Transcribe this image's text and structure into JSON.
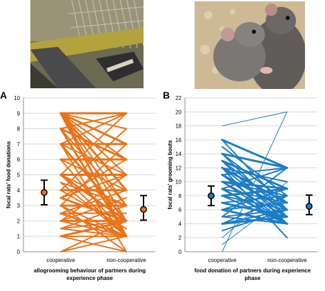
{
  "photos": [
    {
      "subject": "experimental apparatus with rat cage and food tray"
    },
    {
      "subject": "two grey rats grooming"
    }
  ],
  "colors": {
    "orange": "#E8731A",
    "blue": "#1C7DC4",
    "grid": "#D9D9D9",
    "axis": "#8C8C8C"
  },
  "chart_data": [
    {
      "type": "line",
      "panel_label": "A",
      "ylabel": "focal rats' food donations",
      "xlabel_line1": "allogrooming behaviour of partners during",
      "xlabel_line2": "experience phase",
      "categories": [
        "cooperative",
        "non-cooperative"
      ],
      "ylim": [
        0,
        10
      ],
      "yticks": [
        0,
        1,
        2,
        3,
        4,
        5,
        6,
        7,
        8,
        9,
        10
      ],
      "grid": true,
      "color": "#E8731A",
      "pairs": [
        [
          9,
          9,
          3
        ],
        [
          9,
          8,
          2
        ],
        [
          9,
          7,
          3
        ],
        [
          9,
          6,
          2
        ],
        [
          9,
          5,
          2
        ],
        [
          9,
          4,
          3
        ],
        [
          9,
          3,
          2
        ],
        [
          9,
          2,
          2
        ],
        [
          9,
          1,
          3
        ],
        [
          8,
          9,
          2
        ],
        [
          8,
          6,
          3
        ],
        [
          8,
          3,
          2
        ],
        [
          8,
          1,
          3
        ],
        [
          7,
          9,
          2
        ],
        [
          7,
          7,
          3
        ],
        [
          7,
          5,
          2
        ],
        [
          7,
          2,
          3
        ],
        [
          7,
          0,
          2
        ],
        [
          6,
          6,
          3
        ],
        [
          6,
          4,
          2
        ],
        [
          6,
          1,
          2
        ],
        [
          5,
          9,
          2
        ],
        [
          5,
          5,
          3
        ],
        [
          5,
          3,
          2
        ],
        [
          5,
          2,
          3
        ],
        [
          5,
          1,
          2
        ],
        [
          4.5,
          3,
          2
        ],
        [
          4.5,
          1,
          2
        ],
        [
          4,
          8,
          2
        ],
        [
          4,
          4,
          3
        ],
        [
          4,
          1.5,
          2
        ],
        [
          3.5,
          5,
          2
        ],
        [
          3.5,
          2,
          3
        ],
        [
          3.5,
          6,
          2
        ],
        [
          3,
          7,
          2
        ],
        [
          3,
          3,
          3
        ],
        [
          3,
          1,
          2
        ],
        [
          3,
          0,
          2
        ],
        [
          2.5,
          4,
          2
        ],
        [
          2.5,
          2.5,
          2
        ],
        [
          2.5,
          1,
          3
        ],
        [
          2,
          5,
          2
        ],
        [
          2,
          2,
          3
        ],
        [
          2,
          1,
          2
        ],
        [
          2,
          3.5,
          2
        ],
        [
          1.5,
          3,
          2
        ],
        [
          1.5,
          1,
          2
        ],
        [
          1.5,
          2,
          2
        ],
        [
          1,
          2,
          3
        ],
        [
          1,
          1,
          2
        ],
        [
          1,
          0,
          2
        ],
        [
          0,
          2,
          2
        ],
        [
          0,
          1,
          2
        ]
      ],
      "mean_cooperative": {
        "mean": 3.85,
        "low": 3.05,
        "high": 4.65
      },
      "mean_noncooperative": {
        "mean": 2.75,
        "low": 2.05,
        "high": 3.65
      }
    },
    {
      "type": "line",
      "panel_label": "B",
      "ylabel": "focal rats' grooming bouts",
      "xlabel_line1": "food donation of partners during experience",
      "xlabel_line2": "phase",
      "categories": [
        "cooperative",
        "non-cooperative"
      ],
      "ylim": [
        0,
        22
      ],
      "yticks": [
        0,
        2,
        4,
        6,
        8,
        10,
        12,
        14,
        16,
        18,
        20,
        22
      ],
      "grid": true,
      "color": "#1C7DC4",
      "pairs": [
        [
          18,
          20,
          1
        ],
        [
          16,
          12,
          3
        ],
        [
          16,
          6,
          2
        ],
        [
          15,
          8,
          2
        ],
        [
          14,
          12,
          3
        ],
        [
          14,
          5,
          2
        ],
        [
          13,
          9,
          3
        ],
        [
          13,
          4,
          2
        ],
        [
          12,
          10,
          2
        ],
        [
          12,
          7,
          3
        ],
        [
          12,
          2,
          2
        ],
        [
          11,
          12,
          2
        ],
        [
          11,
          6,
          3
        ],
        [
          11,
          4,
          2
        ],
        [
          10,
          9,
          3
        ],
        [
          10,
          5,
          2
        ],
        [
          10,
          8,
          2
        ],
        [
          9,
          12,
          2
        ],
        [
          9,
          4,
          3
        ],
        [
          9,
          7,
          2
        ],
        [
          8,
          9,
          3
        ],
        [
          8,
          6,
          2
        ],
        [
          8,
          4,
          2
        ],
        [
          7,
          8,
          2
        ],
        [
          7,
          5,
          3
        ],
        [
          6,
          9,
          2
        ],
        [
          6,
          7,
          2
        ],
        [
          6,
          4,
          3
        ],
        [
          5,
          12,
          2
        ],
        [
          5,
          6,
          2
        ],
        [
          5,
          4,
          2
        ],
        [
          4,
          8,
          2
        ],
        [
          4,
          5,
          3
        ],
        [
          4,
          6,
          2
        ],
        [
          3,
          6,
          2
        ],
        [
          2,
          10,
          1
        ],
        [
          1,
          8,
          1
        ],
        [
          0,
          20,
          1
        ],
        [
          14,
          7,
          2
        ],
        [
          13,
          6,
          2
        ],
        [
          12,
          5,
          2
        ],
        [
          10,
          4,
          2
        ]
      ],
      "mean_cooperative": {
        "mean": 8.0,
        "low": 6.6,
        "high": 9.4
      },
      "mean_noncooperative": {
        "mean": 6.5,
        "low": 5.3,
        "high": 8.1
      }
    }
  ]
}
